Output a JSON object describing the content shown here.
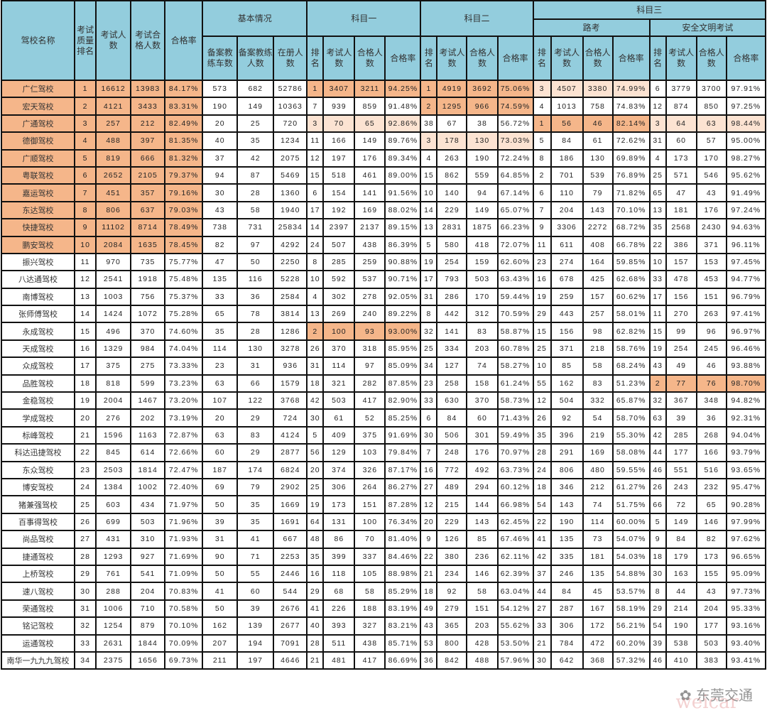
{
  "colors": {
    "header": "#93cddd",
    "highlight_strong": "#f5b68a",
    "highlight_light": "#fce3d2"
  },
  "header": {
    "name": "驾校名称",
    "rank": "考试质量排名",
    "exam_count": "考试人数",
    "pass_count": "考试合格人数",
    "pass_rate": "合格率",
    "basic": "基本情况",
    "basic_cols": [
      "备案教练车数",
      "备案教练人数",
      "在册人数"
    ],
    "k1": "科目一",
    "k2": "科目二",
    "k3": "科目三",
    "road": "路考",
    "safe": "安全文明考试",
    "sub_cols": [
      "排名",
      "考试人数",
      "合格人数",
      "合格率"
    ]
  },
  "rows": [
    [
      "广仁驾校",
      "1",
      "16612",
      "13983",
      "84.17%",
      "573",
      "682",
      "52786",
      "1",
      "3407",
      "3211",
      "94.25%",
      "1",
      "4919",
      "3692",
      "75.06%",
      "3",
      "4507",
      "3380",
      "74.99%",
      "6",
      "3779",
      "3700",
      "97.91%"
    ],
    [
      "宏天驾校",
      "2",
      "4121",
      "3433",
      "83.31%",
      "190",
      "149",
      "10363",
      "7",
      "939",
      "859",
      "91.48%",
      "2",
      "1295",
      "966",
      "74.59%",
      "4",
      "1013",
      "758",
      "74.83%",
      "12",
      "874",
      "850",
      "97.25%"
    ],
    [
      "广通驾校",
      "3",
      "257",
      "212",
      "82.49%",
      "20",
      "25",
      "720",
      "3",
      "70",
      "65",
      "92.86%",
      "38",
      "67",
      "38",
      "56.72%",
      "1",
      "56",
      "46",
      "82.14%",
      "3",
      "64",
      "63",
      "98.44%"
    ],
    [
      "德御驾校",
      "4",
      "488",
      "397",
      "81.35%",
      "40",
      "35",
      "1234",
      "11",
      "166",
      "149",
      "89.76%",
      "3",
      "178",
      "130",
      "73.03%",
      "5",
      "84",
      "61",
      "72.62%",
      "31",
      "60",
      "57",
      "95.00%"
    ],
    [
      "广顺驾校",
      "5",
      "819",
      "666",
      "81.32%",
      "37",
      "42",
      "2075",
      "12",
      "197",
      "176",
      "89.34%",
      "4",
      "263",
      "190",
      "72.24%",
      "8",
      "186",
      "130",
      "69.89%",
      "4",
      "173",
      "170",
      "98.27%"
    ],
    [
      "粤联驾校",
      "6",
      "2652",
      "2105",
      "79.37%",
      "94",
      "87",
      "5469",
      "15",
      "518",
      "461",
      "89.00%",
      "15",
      "862",
      "559",
      "64.85%",
      "2",
      "701",
      "539",
      "76.89%",
      "25",
      "571",
      "546",
      "95.62%"
    ],
    [
      "嘉运驾校",
      "7",
      "451",
      "357",
      "79.16%",
      "30",
      "28",
      "1360",
      "6",
      "154",
      "141",
      "91.56%",
      "10",
      "140",
      "94",
      "67.14%",
      "6",
      "110",
      "79",
      "71.82%",
      "65",
      "47",
      "43",
      "91.49%"
    ],
    [
      "东达驾校",
      "8",
      "806",
      "637",
      "79.03%",
      "43",
      "58",
      "1940",
      "17",
      "192",
      "169",
      "88.02%",
      "14",
      "229",
      "149",
      "65.07%",
      "7",
      "204",
      "143",
      "70.10%",
      "13",
      "181",
      "176",
      "97.24%"
    ],
    [
      "快捷驾校",
      "9",
      "11102",
      "8714",
      "78.49%",
      "738",
      "731",
      "25834",
      "14",
      "2397",
      "2137",
      "89.15%",
      "13",
      "2831",
      "1875",
      "66.23%",
      "9",
      "3306",
      "2272",
      "68.72%",
      "35",
      "2568",
      "2430",
      "94.63%"
    ],
    [
      "鹏安驾校",
      "10",
      "2084",
      "1635",
      "78.45%",
      "82",
      "97",
      "4292",
      "24",
      "507",
      "438",
      "86.39%",
      "5",
      "580",
      "418",
      "72.07%",
      "11",
      "611",
      "408",
      "66.78%",
      "22",
      "386",
      "371",
      "96.11%"
    ],
    [
      "振兴驾校",
      "11",
      "970",
      "735",
      "75.77%",
      "47",
      "50",
      "2250",
      "8",
      "285",
      "259",
      "90.88%",
      "19",
      "254",
      "159",
      "62.60%",
      "23",
      "274",
      "164",
      "59.85%",
      "10",
      "157",
      "153",
      "97.45%"
    ],
    [
      "八达通驾校",
      "12",
      "2541",
      "1918",
      "75.48%",
      "135",
      "116",
      "5228",
      "10",
      "592",
      "537",
      "90.71%",
      "17",
      "793",
      "503",
      "63.43%",
      "16",
      "678",
      "425",
      "62.68%",
      "33",
      "478",
      "453",
      "94.77%"
    ],
    [
      "南博驾校",
      "13",
      "1003",
      "756",
      "75.37%",
      "33",
      "36",
      "2584",
      "4",
      "302",
      "278",
      "92.05%",
      "31",
      "286",
      "170",
      "59.44%",
      "19",
      "259",
      "157",
      "60.62%",
      "17",
      "156",
      "151",
      "96.79%"
    ],
    [
      "张师傅驾校",
      "14",
      "1424",
      "1072",
      "75.28%",
      "65",
      "78",
      "3814",
      "13",
      "269",
      "240",
      "89.22%",
      "8",
      "442",
      "312",
      "70.59%",
      "29",
      "443",
      "257",
      "58.01%",
      "11",
      "270",
      "263",
      "97.41%"
    ],
    [
      "永成驾校",
      "15",
      "496",
      "370",
      "74.60%",
      "35",
      "28",
      "1286",
      "2",
      "100",
      "93",
      "93.00%",
      "32",
      "141",
      "83",
      "58.87%",
      "15",
      "156",
      "98",
      "62.82%",
      "15",
      "99",
      "96",
      "96.97%"
    ],
    [
      "天成驾校",
      "16",
      "1329",
      "984",
      "74.04%",
      "114",
      "130",
      "3278",
      "26",
      "370",
      "318",
      "85.95%",
      "25",
      "334",
      "203",
      "60.78%",
      "25",
      "371",
      "218",
      "58.76%",
      "19",
      "254",
      "245",
      "96.46%"
    ],
    [
      "众成驾校",
      "17",
      "375",
      "275",
      "73.33%",
      "23",
      "31",
      "936",
      "31",
      "114",
      "97",
      "85.09%",
      "34",
      "127",
      "74",
      "58.27%",
      "10",
      "85",
      "58",
      "68.24%",
      "43",
      "49",
      "46",
      "93.88%"
    ],
    [
      "品胜驾校",
      "18",
      "818",
      "599",
      "73.23%",
      "63",
      "66",
      "1579",
      "18",
      "321",
      "282",
      "87.85%",
      "23",
      "258",
      "158",
      "61.24%",
      "55",
      "162",
      "83",
      "51.23%",
      "2",
      "77",
      "76",
      "98.70%"
    ],
    [
      "金稳驾校",
      "19",
      "2004",
      "1467",
      "73.20%",
      "107",
      "122",
      "3768",
      "42",
      "503",
      "417",
      "82.90%",
      "33",
      "630",
      "370",
      "58.73%",
      "12",
      "504",
      "332",
      "65.87%",
      "32",
      "367",
      "348",
      "94.82%"
    ],
    [
      "学成驾校",
      "20",
      "276",
      "202",
      "73.19%",
      "20",
      "29",
      "724",
      "30",
      "61",
      "52",
      "85.25%",
      "6",
      "84",
      "60",
      "71.43%",
      "26",
      "92",
      "54",
      "58.70%",
      "63",
      "39",
      "36",
      "92.31%"
    ],
    [
      "标峰驾校",
      "21",
      "1596",
      "1163",
      "72.87%",
      "63",
      "83",
      "4124",
      "5",
      "409",
      "375",
      "91.69%",
      "30",
      "506",
      "301",
      "59.49%",
      "35",
      "396",
      "219",
      "55.30%",
      "42",
      "285",
      "268",
      "94.04%"
    ],
    [
      "科达迅捷驾校",
      "22",
      "845",
      "614",
      "72.66%",
      "60",
      "29",
      "2877",
      "56",
      "129",
      "103",
      "79.84%",
      "7",
      "248",
      "176",
      "70.97%",
      "28",
      "291",
      "169",
      "58.08%",
      "44",
      "177",
      "166",
      "93.79%"
    ],
    [
      "东众驾校",
      "23",
      "2503",
      "1814",
      "72.47%",
      "187",
      "174",
      "6824",
      "20",
      "374",
      "326",
      "87.17%",
      "16",
      "772",
      "492",
      "63.73%",
      "24",
      "806",
      "480",
      "59.55%",
      "46",
      "551",
      "516",
      "93.65%"
    ],
    [
      "博安驾校",
      "24",
      "1384",
      "1002",
      "72.40%",
      "69",
      "79",
      "2902",
      "25",
      "306",
      "264",
      "86.27%",
      "27",
      "489",
      "294",
      "60.12%",
      "18",
      "346",
      "212",
      "61.27%",
      "26",
      "243",
      "232",
      "95.47%"
    ],
    [
      "猪兼强驾校",
      "25",
      "603",
      "434",
      "71.97%",
      "50",
      "35",
      "1669",
      "19",
      "173",
      "151",
      "87.28%",
      "12",
      "215",
      "144",
      "66.98%",
      "54",
      "143",
      "74",
      "51.75%",
      "66",
      "72",
      "65",
      "90.28%"
    ],
    [
      "百事得驾校",
      "26",
      "699",
      "503",
      "71.96%",
      "39",
      "35",
      "1691",
      "64",
      "131",
      "100",
      "76.34%",
      "20",
      "229",
      "143",
      "62.45%",
      "22",
      "190",
      "114",
      "60.00%",
      "5",
      "149",
      "146",
      "97.99%"
    ],
    [
      "尚品驾校",
      "27",
      "431",
      "310",
      "71.93%",
      "31",
      "41",
      "667",
      "48",
      "86",
      "70",
      "81.40%",
      "9",
      "126",
      "85",
      "67.46%",
      "41",
      "135",
      "73",
      "54.07%",
      "9",
      "84",
      "82",
      "97.62%"
    ],
    [
      "捷通驾校",
      "28",
      "1293",
      "927",
      "71.69%",
      "90",
      "71",
      "2253",
      "35",
      "399",
      "337",
      "84.46%",
      "22",
      "380",
      "236",
      "62.11%",
      "42",
      "335",
      "181",
      "54.03%",
      "18",
      "179",
      "173",
      "96.65%"
    ],
    [
      "上桥驾校",
      "29",
      "761",
      "541",
      "71.09%",
      "50",
      "55",
      "2446",
      "16",
      "118",
      "105",
      "88.98%",
      "21",
      "234",
      "146",
      "62.39%",
      "37",
      "246",
      "135",
      "54.88%",
      "30",
      "163",
      "155",
      "95.09%"
    ],
    [
      "速八驾校",
      "30",
      "288",
      "204",
      "70.83%",
      "41",
      "60",
      "544",
      "29",
      "68",
      "58",
      "85.29%",
      "18",
      "92",
      "58",
      "63.04%",
      "44",
      "84",
      "45",
      "53.57%",
      "8",
      "44",
      "43",
      "97.73%"
    ],
    [
      "荣通驾校",
      "31",
      "1006",
      "710",
      "70.58%",
      "50",
      "39",
      "2676",
      "41",
      "226",
      "188",
      "83.19%",
      "49",
      "279",
      "151",
      "54.12%",
      "27",
      "287",
      "167",
      "58.19%",
      "29",
      "214",
      "204",
      "95.33%"
    ],
    [
      "铭记驾校",
      "32",
      "1254",
      "879",
      "70.10%",
      "162",
      "139",
      "2677",
      "40",
      "393",
      "327",
      "83.21%",
      "43",
      "365",
      "203",
      "55.62%",
      "33",
      "306",
      "172",
      "56.21%",
      "54",
      "190",
      "177",
      "93.16%"
    ],
    [
      "运通驾校",
      "33",
      "2631",
      "1844",
      "70.09%",
      "207",
      "194",
      "7091",
      "28",
      "511",
      "438",
      "85.71%",
      "53",
      "800",
      "428",
      "53.50%",
      "21",
      "784",
      "472",
      "60.20%",
      "39",
      "538",
      "503",
      "93.40%"
    ],
    [
      "南华一九九九驾校",
      "34",
      "2375",
      "1656",
      "69.73%",
      "211",
      "197",
      "4646",
      "21",
      "481",
      "417",
      "86.69%",
      "36",
      "842",
      "488",
      "57.96%",
      "30",
      "642",
      "368",
      "57.32%",
      "46",
      "410",
      "383",
      "93.41%"
    ]
  ],
  "highlights": [
    {
      "row": 0,
      "group": "main",
      "level": "strong"
    },
    {
      "row": 1,
      "group": "main",
      "level": "strong"
    },
    {
      "row": 2,
      "group": "main",
      "level": "strong"
    },
    {
      "row": 3,
      "group": "main",
      "level": "strong"
    },
    {
      "row": 4,
      "group": "main",
      "level": "strong"
    },
    {
      "row": 5,
      "group": "main",
      "level": "strong"
    },
    {
      "row": 6,
      "group": "main",
      "level": "strong"
    },
    {
      "row": 7,
      "group": "main",
      "level": "strong"
    },
    {
      "row": 8,
      "group": "main",
      "level": "strong"
    },
    {
      "row": 9,
      "group": "main",
      "level": "strong"
    },
    {
      "row": 0,
      "group": "k1",
      "level": "strong"
    },
    {
      "row": 2,
      "group": "k1",
      "level": "light"
    },
    {
      "row": 14,
      "group": "k1",
      "level": "strong"
    },
    {
      "row": 0,
      "group": "k2",
      "level": "strong"
    },
    {
      "row": 1,
      "group": "k2",
      "level": "strong"
    },
    {
      "row": 3,
      "group": "k2",
      "level": "light"
    },
    {
      "row": 0,
      "group": "road",
      "level": "light"
    },
    {
      "row": 2,
      "group": "road",
      "level": "strong"
    },
    {
      "row": 2,
      "group": "safe",
      "level": "light"
    },
    {
      "row": 17,
      "group": "safe",
      "level": "strong"
    }
  ],
  "watermark": {
    "text": "东莞交通",
    "sub": "weicar"
  }
}
